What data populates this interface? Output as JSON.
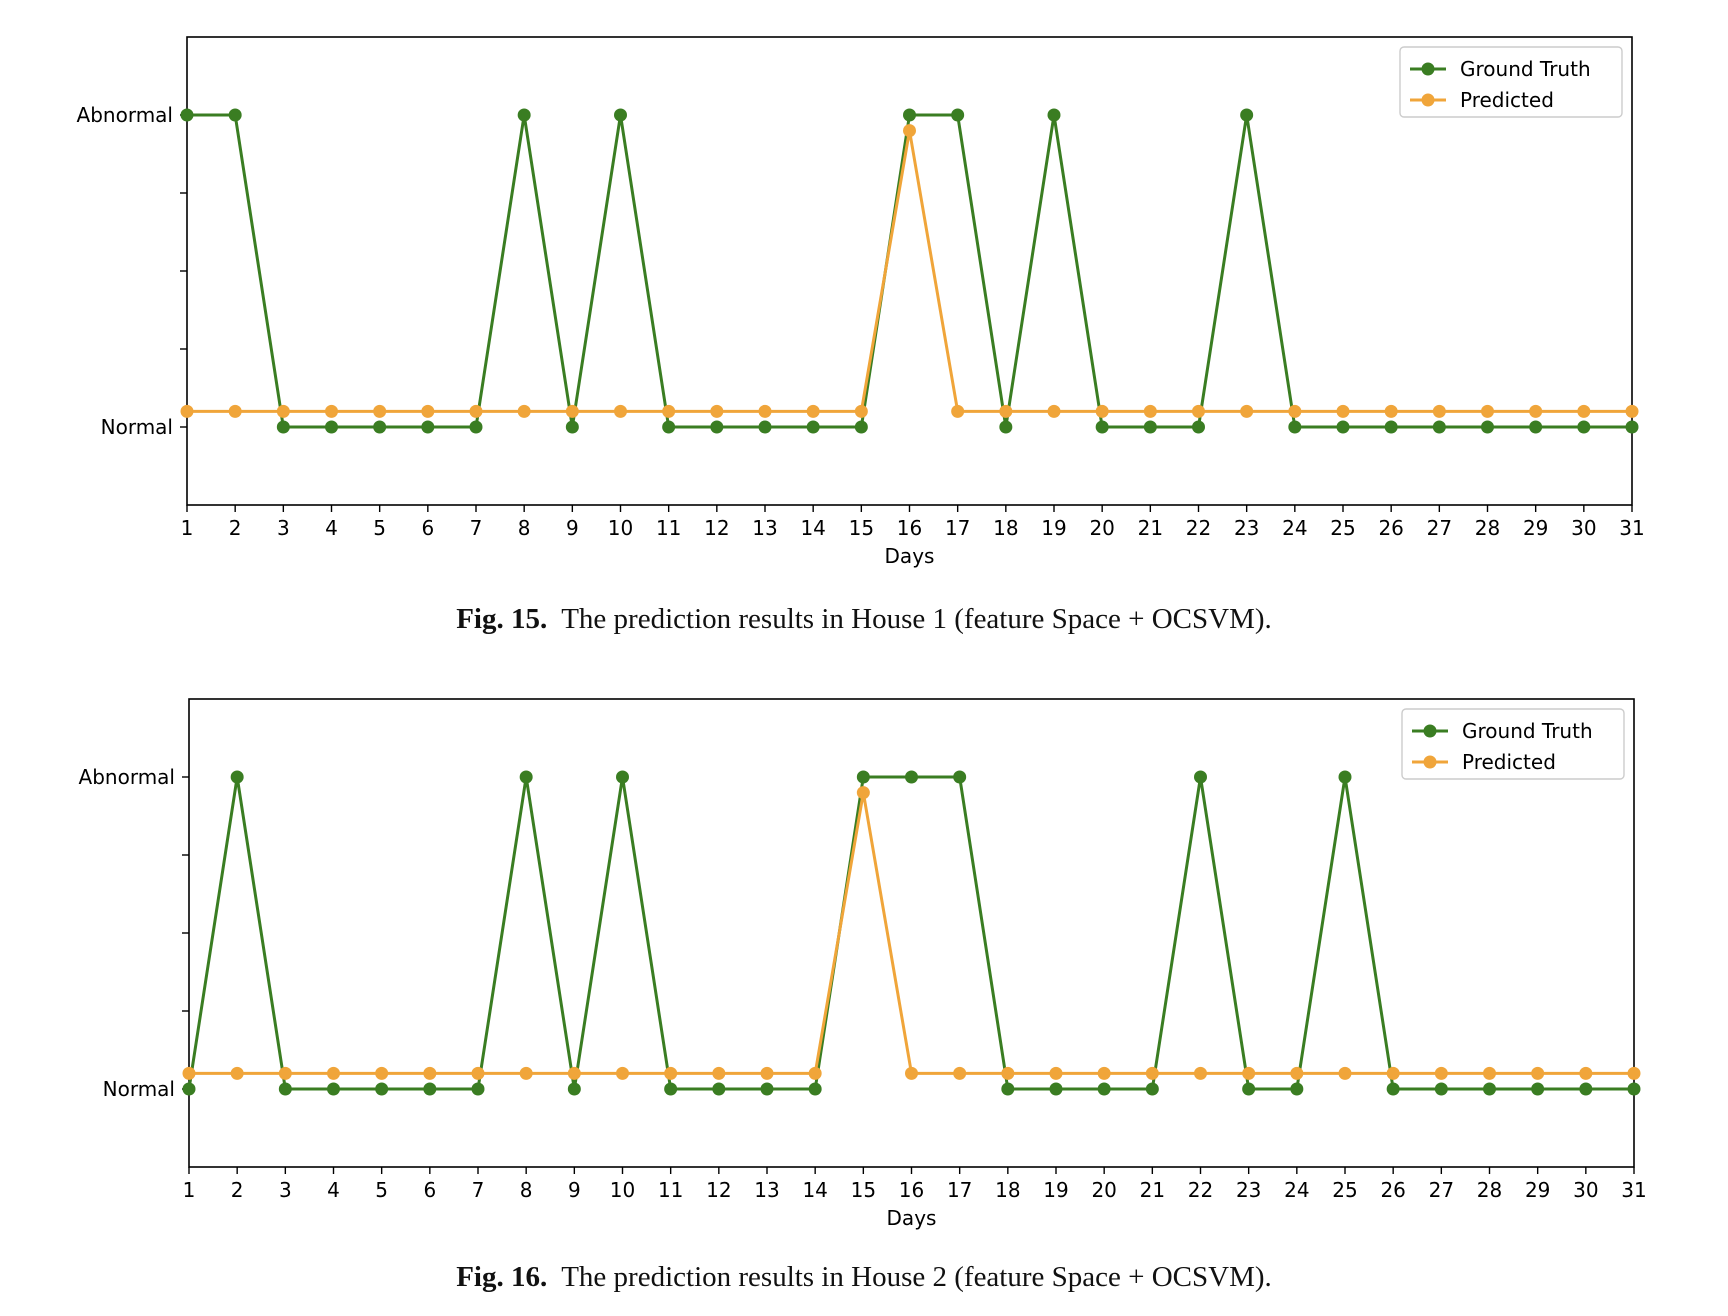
{
  "chart_data": [
    {
      "type": "line",
      "title": "",
      "xlabel": "Days",
      "ylabel": "",
      "x": [
        1,
        2,
        3,
        4,
        5,
        6,
        7,
        8,
        9,
        10,
        11,
        12,
        13,
        14,
        15,
        16,
        17,
        18,
        19,
        20,
        21,
        22,
        23,
        24,
        25,
        26,
        27,
        28,
        29,
        30,
        31
      ],
      "xlim": [
        1,
        31
      ],
      "ylim": [
        -0.25,
        1.25
      ],
      "y_ticks": [
        {
          "value": 0,
          "label": "Normal"
        },
        {
          "value": 1,
          "label": "Abnormal"
        }
      ],
      "y_minor_ticks": [
        0.25,
        0.5,
        0.75
      ],
      "series": [
        {
          "name": "Ground Truth",
          "color": "#3a7d22",
          "values": [
            1,
            1,
            0,
            0,
            0,
            0,
            0,
            1,
            0,
            1,
            0,
            0,
            0,
            0,
            0,
            1,
            1,
            0,
            1,
            0,
            0,
            0,
            1,
            0,
            0,
            0,
            0,
            0,
            0,
            0,
            0
          ]
        },
        {
          "name": "Predicted",
          "color": "#f0a53a",
          "values": [
            0.05,
            0.05,
            0.05,
            0.05,
            0.05,
            0.05,
            0.05,
            0.05,
            0.05,
            0.05,
            0.05,
            0.05,
            0.05,
            0.05,
            0.05,
            0.95,
            0.05,
            0.05,
            0.05,
            0.05,
            0.05,
            0.05,
            0.05,
            0.05,
            0.05,
            0.05,
            0.05,
            0.05,
            0.05,
            0.05,
            0.05
          ]
        }
      ],
      "legend": "top-right",
      "grid": false,
      "caption": {
        "label": "Fig. 15.",
        "text": "The prediction results in House 1 (feature Space + OCSVM)."
      }
    },
    {
      "type": "line",
      "title": "",
      "xlabel": "Days",
      "ylabel": "",
      "x": [
        1,
        2,
        3,
        4,
        5,
        6,
        7,
        8,
        9,
        10,
        11,
        12,
        13,
        14,
        15,
        16,
        17,
        18,
        19,
        20,
        21,
        22,
        23,
        24,
        25,
        26,
        27,
        28,
        29,
        30,
        31
      ],
      "xlim": [
        1,
        31
      ],
      "ylim": [
        -0.25,
        1.25
      ],
      "y_ticks": [
        {
          "value": 0,
          "label": "Normal"
        },
        {
          "value": 1,
          "label": "Abnormal"
        }
      ],
      "y_minor_ticks": [
        0.25,
        0.5,
        0.75
      ],
      "series": [
        {
          "name": "Ground Truth",
          "color": "#3a7d22",
          "values": [
            0,
            1,
            0,
            0,
            0,
            0,
            0,
            1,
            0,
            1,
            0,
            0,
            0,
            0,
            1,
            1,
            1,
            0,
            0,
            0,
            0,
            1,
            0,
            0,
            1,
            0,
            0,
            0,
            0,
            0,
            0
          ]
        },
        {
          "name": "Predicted",
          "color": "#f0a53a",
          "values": [
            0.05,
            0.05,
            0.05,
            0.05,
            0.05,
            0.05,
            0.05,
            0.05,
            0.05,
            0.05,
            0.05,
            0.05,
            0.05,
            0.05,
            0.95,
            0.05,
            0.05,
            0.05,
            0.05,
            0.05,
            0.05,
            0.05,
            0.05,
            0.05,
            0.05,
            0.05,
            0.05,
            0.05,
            0.05,
            0.05,
            0.05
          ]
        }
      ],
      "legend": "top-right",
      "grid": false,
      "caption": {
        "label": "Fig. 16.",
        "text": "The prediction results in House 2 (feature Space + OCSVM)."
      }
    }
  ]
}
